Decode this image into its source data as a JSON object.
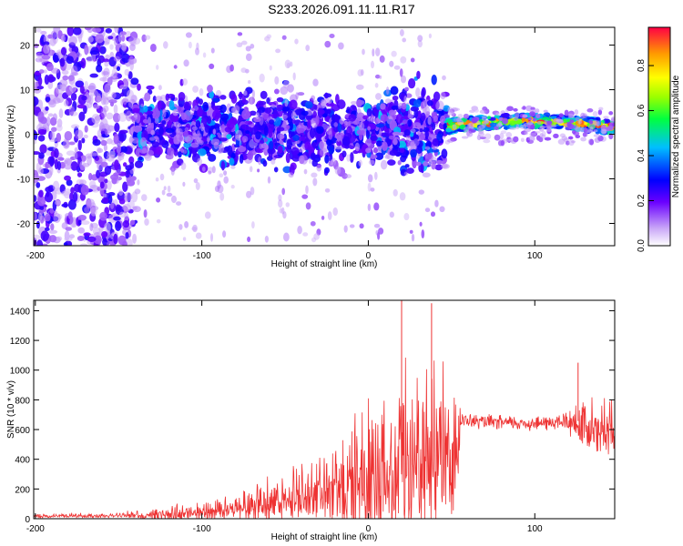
{
  "title": "S233.2026.091.11.11.R17",
  "colorbar": {
    "label": "Normalized spectral amplitude",
    "ticks": [
      "0.0",
      "0.2",
      "0.4",
      "0.6",
      "0.8"
    ],
    "tick_values": [
      0.0,
      0.2,
      0.4,
      0.6,
      0.8
    ],
    "range": [
      0,
      0.97
    ]
  },
  "chart_data": [
    {
      "type": "heatmap",
      "title": "",
      "xlabel": "Height of straight line (km)",
      "ylabel": "Frequency (Hz)",
      "xlim": [
        -201,
        148
      ],
      "ylim": [
        -25,
        24
      ],
      "xticks": [
        -200,
        -100,
        0,
        100
      ],
      "xtick_labels": [
        "-200",
        "-100",
        "0",
        "100"
      ],
      "yticks": [
        20,
        10,
        0,
        -10,
        -20
      ],
      "ytick_labels": [
        "20",
        "10",
        "0",
        "-10",
        "-20"
      ],
      "description_regions": [
        {
          "x_range": [
            -201,
            -140
          ],
          "freq_spread": 24,
          "level": 0.15
        },
        {
          "x_range": [
            -140,
            47
          ],
          "freq_spread": 12,
          "level": 0.25
        },
        {
          "x_range": [
            47,
            148
          ],
          "freq_center": [
            2,
            3
          ],
          "level": 0.8
        }
      ]
    },
    {
      "type": "line",
      "title": "",
      "xlabel": "Height of straight line (km)",
      "ylabel": "SNR (10 * v/v)",
      "xlim": [
        -201,
        148
      ],
      "ylim": [
        0,
        1470
      ],
      "xticks": [
        -200,
        -100,
        0,
        100
      ],
      "xtick_labels": [
        "-200",
        "-100",
        "0",
        "100"
      ],
      "yticks": [
        0,
        200,
        400,
        600,
        800,
        1000,
        1200,
        1400
      ],
      "ytick_labels": [
        "0",
        "200",
        "400",
        "600",
        "800",
        "1000",
        "1200",
        "1400"
      ],
      "color": "#ee3333",
      "envelope": {
        "x": [
          -201,
          -150,
          -130,
          -100,
          -80,
          -60,
          -40,
          -20,
          0,
          10,
          20,
          30,
          40,
          50,
          54,
          56,
          70,
          100,
          115,
          130,
          138,
          148
        ],
        "y_mean": [
          20,
          25,
          40,
          60,
          100,
          140,
          200,
          280,
          360,
          420,
          470,
          520,
          560,
          600,
          600,
          660,
          650,
          640,
          650,
          660,
          680,
          660
        ],
        "y_spread": [
          15,
          20,
          60,
          70,
          110,
          160,
          220,
          330,
          520,
          650,
          700,
          680,
          700,
          700,
          650,
          60,
          60,
          60,
          70,
          200,
          300,
          250
        ]
      },
      "notable_peaks": [
        {
          "x": 20,
          "y": 1470
        },
        {
          "x": 38,
          "y": 1450
        },
        {
          "x": 126,
          "y": 1050
        }
      ]
    }
  ]
}
